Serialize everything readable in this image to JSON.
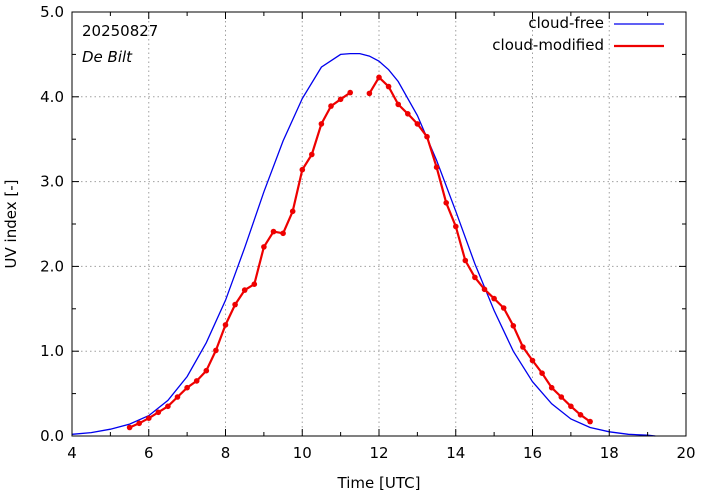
{
  "chart_data": {
    "type": "line",
    "xlabel": "Time  [UTC]",
    "ylabel": "UV index  [-]",
    "xlim": [
      4,
      20
    ],
    "ylim": [
      0,
      5
    ],
    "x_ticks": [
      4,
      6,
      8,
      10,
      12,
      14,
      16,
      18,
      20
    ],
    "x_tick_labels": [
      "4",
      "6",
      "8",
      "10",
      "12",
      "14",
      "16",
      "18",
      "20"
    ],
    "y_ticks": [
      0,
      1,
      2,
      3,
      4,
      5
    ],
    "y_tick_labels": [
      "0.0",
      "1.0",
      "2.0",
      "3.0",
      "4.0",
      "5.0"
    ],
    "grid": true,
    "legend_position": "top-right",
    "annotations": {
      "date": "20250827",
      "station": "De Bilt"
    },
    "series": [
      {
        "name": "cloud-free",
        "color": "#0000ee",
        "markers": false,
        "x": [
          4.0,
          4.5,
          5.0,
          5.5,
          6.0,
          6.5,
          7.0,
          7.5,
          8.0,
          8.5,
          9.0,
          9.5,
          10.0,
          10.5,
          11.0,
          11.25,
          11.5,
          11.75,
          12.0,
          12.25,
          12.5,
          13.0,
          13.5,
          14.0,
          14.5,
          15.0,
          15.5,
          16.0,
          16.5,
          17.0,
          17.5,
          18.0,
          18.5,
          19.0,
          19.2
        ],
        "y": [
          0.02,
          0.04,
          0.08,
          0.14,
          0.24,
          0.42,
          0.7,
          1.1,
          1.6,
          2.22,
          2.88,
          3.48,
          3.98,
          4.35,
          4.5,
          4.51,
          4.51,
          4.48,
          4.42,
          4.32,
          4.18,
          3.78,
          3.25,
          2.65,
          2.03,
          1.48,
          1.0,
          0.64,
          0.38,
          0.2,
          0.1,
          0.05,
          0.02,
          0.01,
          0.0
        ]
      },
      {
        "name": "cloud-modified",
        "color": "#ee0000",
        "markers": true,
        "segments": [
          {
            "x": [
              5.5,
              5.75,
              6.0,
              6.25,
              6.5,
              6.75,
              7.0,
              7.25,
              7.5,
              7.75,
              8.0,
              8.25,
              8.5,
              8.75,
              9.0,
              9.25,
              9.5,
              9.75,
              10.0,
              10.25,
              10.5,
              10.75,
              11.0,
              11.25
            ],
            "y": [
              0.1,
              0.15,
              0.21,
              0.28,
              0.35,
              0.46,
              0.57,
              0.65,
              0.77,
              1.01,
              1.31,
              1.55,
              1.72,
              1.79,
              2.23,
              2.41,
              2.39,
              2.65,
              3.14,
              3.32,
              3.68,
              3.89,
              3.97,
              4.05
            ]
          },
          {
            "x": [
              11.75,
              12.0,
              12.25,
              12.5,
              12.75,
              13.0,
              13.25,
              13.5,
              13.75,
              14.0,
              14.25,
              14.5,
              14.75,
              15.0,
              15.25,
              15.5,
              15.75,
              16.0,
              16.25,
              16.5,
              16.75,
              17.0,
              17.25,
              17.5
            ],
            "y": [
              4.04,
              4.23,
              4.12,
              3.91,
              3.8,
              3.68,
              3.53,
              3.17,
              2.75,
              2.47,
              2.07,
              1.87,
              1.73,
              1.62,
              1.51,
              1.3,
              1.05,
              0.89,
              0.74,
              0.57,
              0.46,
              0.35,
              0.25,
              0.17
            ]
          }
        ]
      }
    ]
  }
}
